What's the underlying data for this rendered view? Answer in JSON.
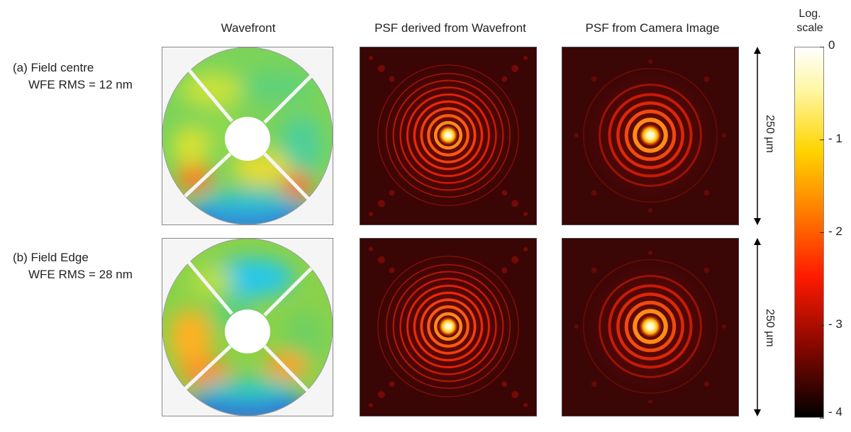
{
  "columns": {
    "wavefront": "Wavefront",
    "psf_derived": "PSF derived from Wavefront",
    "psf_camera": "PSF from Camera Image"
  },
  "rows": [
    {
      "label": "(a) Field centre",
      "wfe": "WFE RMS = 12 nm",
      "scale_bar": "250 µm"
    },
    {
      "label": "(b) Field Edge",
      "wfe": "WFE RMS = 28 nm",
      "scale_bar": "250 µm"
    }
  ],
  "colorbar": {
    "title_line1": "Log.",
    "title_line2": "scale",
    "ticks": [
      "0",
      "- 1",
      "- 2",
      "- 3",
      "- 4"
    ],
    "tick_values": [
      0,
      -1,
      -2,
      -3,
      -4
    ],
    "range": [
      -4,
      0
    ]
  },
  "colors": {
    "psf_background": "#3a0505",
    "colorbar_top": "#ffffff",
    "colorbar_bottom": "#000000"
  }
}
